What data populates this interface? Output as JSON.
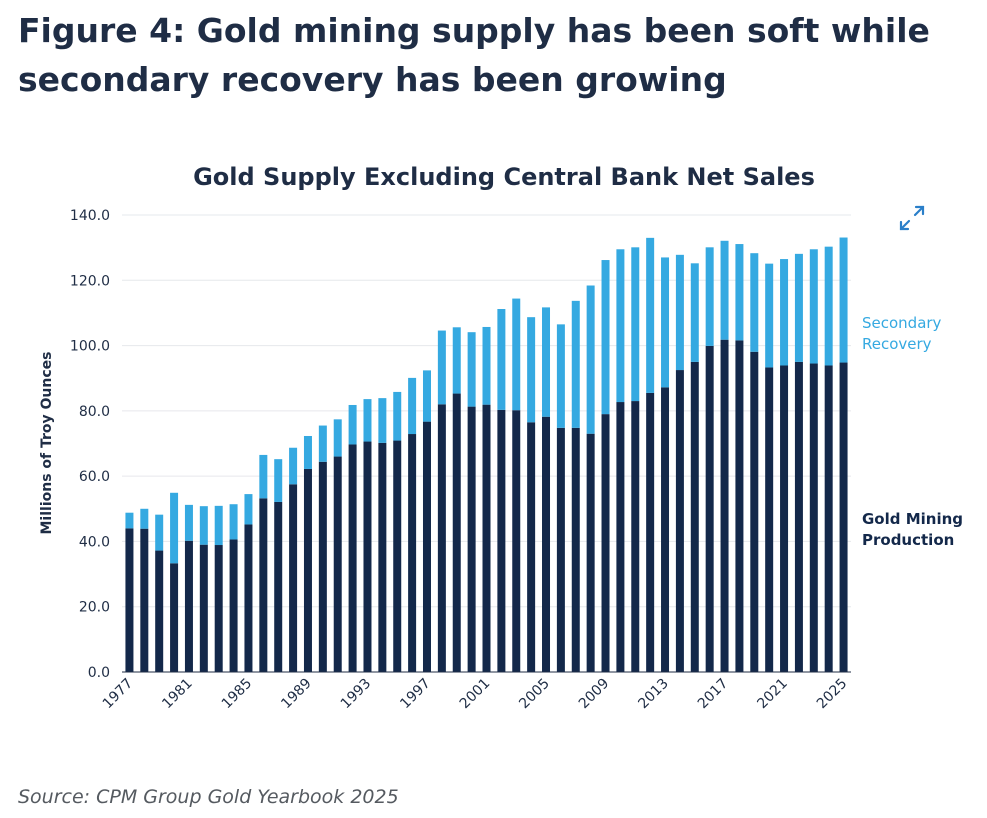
{
  "figure": {
    "title": "Figure 4: Gold mining supply has been soft while secondary recovery has been growing",
    "source": "Source: CPM Group Gold Yearbook 2025"
  },
  "colors": {
    "mining": "#13284a",
    "secondary": "#35a9e1",
    "grid": "#e6e8ec",
    "axis": "#1f2d45"
  },
  "icons": {
    "expand": "expand-arrows-icon"
  },
  "chart_data": {
    "type": "bar",
    "stacked": true,
    "title": "Gold Supply Excluding Central Bank Net Sales",
    "ylabel": "Millions of Troy Ounces",
    "xlabel": "",
    "ylim": [
      0,
      140
    ],
    "yticks": [
      "0.0",
      "20.0",
      "40.0",
      "60.0",
      "80.0",
      "100.0",
      "120.0",
      "140.0"
    ],
    "grid": true,
    "legend_placement": "right",
    "xtick_labels": [
      "1977",
      "1981",
      "1985",
      "1989",
      "1993",
      "1997",
      "2001",
      "2005",
      "2009",
      "2013",
      "2017",
      "2021",
      "2025"
    ],
    "categories": [
      1977,
      1978,
      1979,
      1980,
      1981,
      1982,
      1983,
      1984,
      1985,
      1986,
      1987,
      1988,
      1989,
      1990,
      1991,
      1992,
      1993,
      1994,
      1995,
      1996,
      1997,
      1998,
      1999,
      2000,
      2001,
      2002,
      2003,
      2004,
      2005,
      2006,
      2007,
      2008,
      2009,
      2010,
      2011,
      2012,
      2013,
      2014,
      2015,
      2016,
      2017,
      2018,
      2019,
      2020,
      2021,
      2022,
      2023,
      2024,
      2025
    ],
    "series": [
      {
        "name": "Gold Mining Production",
        "values": [
          44.0,
          43.9,
          37.2,
          33.3,
          40.2,
          39.0,
          38.9,
          40.6,
          45.2,
          53.2,
          52.1,
          57.5,
          62.2,
          64.4,
          66.0,
          69.7,
          70.6,
          70.2,
          70.9,
          72.9,
          76.7,
          82.0,
          85.3,
          81.3,
          81.9,
          80.3,
          80.2,
          76.5,
          78.2,
          74.8,
          74.8,
          73.0,
          79.0,
          82.7,
          83.0,
          85.5,
          87.2,
          92.5,
          95.0,
          99.9,
          101.8,
          101.6,
          98.1,
          93.3,
          93.9,
          95.0,
          94.5,
          93.9,
          94.8
        ]
      },
      {
        "name": "Secondary Recovery",
        "values": [
          4.8,
          6.1,
          11.0,
          21.6,
          11.0,
          11.8,
          12.0,
          10.8,
          9.3,
          13.3,
          13.1,
          11.2,
          10.1,
          11.1,
          11.4,
          12.1,
          13.0,
          13.7,
          14.9,
          17.2,
          15.7,
          22.6,
          20.3,
          22.8,
          23.8,
          30.9,
          34.2,
          32.2,
          33.5,
          31.7,
          38.9,
          45.4,
          47.2,
          46.8,
          47.1,
          47.5,
          39.8,
          35.3,
          30.2,
          30.2,
          30.3,
          29.5,
          30.2,
          31.8,
          32.6,
          33.1,
          35.0,
          36.4,
          38.3
        ]
      }
    ]
  }
}
